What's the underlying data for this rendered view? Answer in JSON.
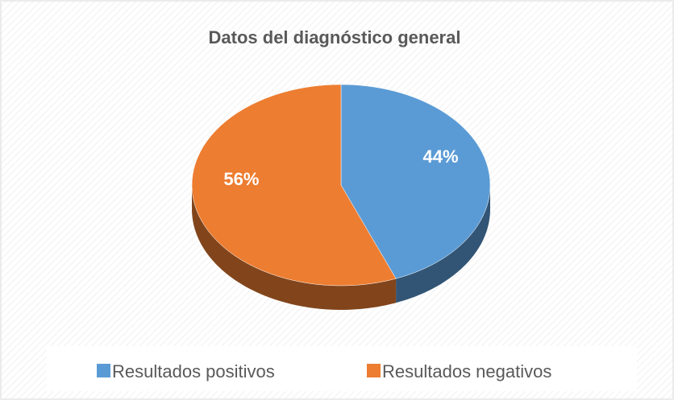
{
  "chart_data": {
    "type": "pie",
    "title": "Datos del diagnóstico general",
    "categories": [
      "Resultados positivos",
      "Resultados negativos"
    ],
    "values": [
      44,
      56
    ],
    "value_labels": [
      "44%",
      "56%"
    ],
    "colors": [
      "#5b9bd5",
      "#ed7d31"
    ],
    "legend": "bottom"
  }
}
